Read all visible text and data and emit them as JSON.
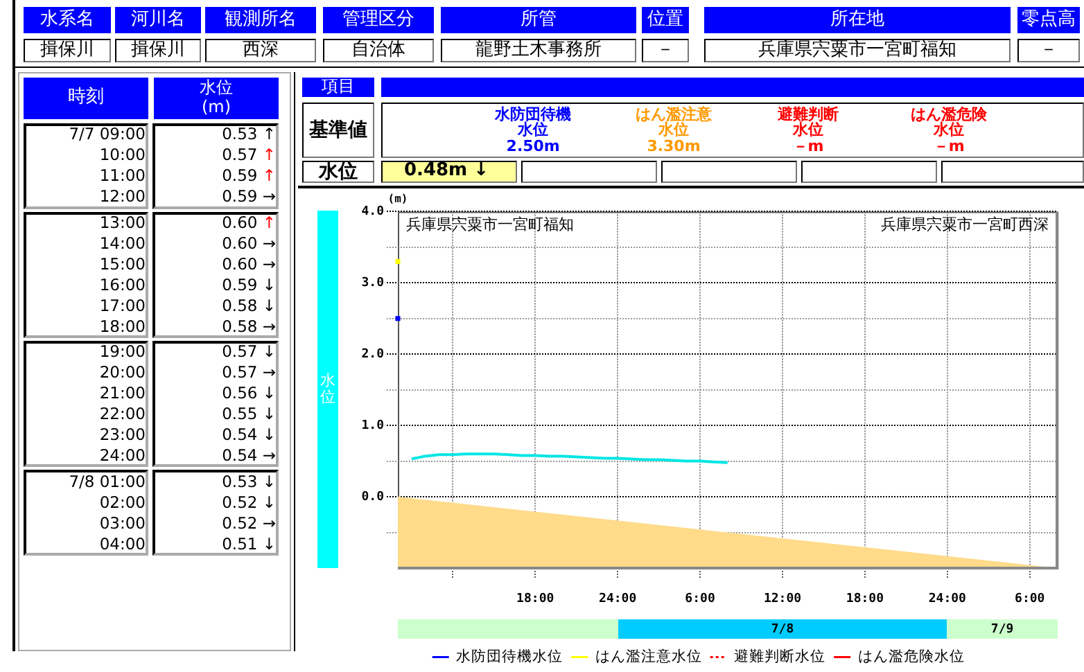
{
  "chart_data": [
    {
      "type": "other",
      "annotations": [
        "水系名",
        "河川名",
        "観測所名",
        "管理区分",
        "所管",
        "位置",
        "所在地",
        "零点高",
        "揖保川",
        "揖保川",
        "西深",
        "自治体",
        "龍野土木事務所",
        "－",
        "兵庫県宍粟市一宮町福知",
        "－"
      ]
    },
    {
      "type": "other",
      "annotations": [
        "項目",
        "基準値",
        "水防団待機",
        "水位",
        "2.50m",
        "はん濫注意",
        "水位",
        "3.30m",
        "避難判断",
        "水位",
        "－m",
        "はん濫危険",
        "水位",
        "－m",
        "水位",
        "0.48m ↓"
      ]
    },
    {
      "type": "line",
      "ylabel": "水位",
      "annotations": [
        "(m)",
        "兵庫県宍粟市一宮町福知",
        "兵庫県宍粟市一宮町西深",
        "時刻",
        "水位",
        "(m)",
        "7/7 09:00",
        "0.53 ↑",
        "10:00",
        "0.57 ↑",
        "11:00",
        "0.59 ↑",
        "12:00",
        "0.59 →",
        "13:00",
        "0.60 ↑",
        "14:00",
        "0.60 →",
        "15:00",
        "0.60 →",
        "16:00",
        "0.59 ↓",
        "17:00",
        "0.58 ↓",
        "18:00",
        "0.58 →",
        "19:00",
        "0.57 ↓",
        "20:00",
        "0.57 →",
        "21:00",
        "0.56 ↓",
        "22:00",
        "0.55 ↓",
        "23:00",
        "0.54 ↓",
        "24:00",
        "0.54 →",
        "7/8 01:00",
        "0.53 ↓",
        "02:00",
        "0.52 ↓",
        "03:00",
        "0.52 →",
        "04:00",
        "0.51 ↓"
      ],
      "x": [
        "--07-07T09:00",
        "--07-07T10:00",
        "--07-07T11:00",
        "--07-07T12:00",
        "--07-07T13:00",
        "--07-07T14:00",
        "--07-07T15:00",
        "--07-07T16:00",
        "--07-07T17:00",
        "--07-07T18:00",
        "--07-07T19:00",
        "--07-07T20:00",
        "--07-07T21:00",
        "--07-07T22:00",
        "--07-07T23:00",
        "--07-08T00:00",
        "--07-08T01:00",
        "--07-08T02:00",
        "--07-08T03:00",
        "--07-08T04:00",
        "--07-08T05:00",
        "--07-08T06:00",
        "--07-08T07:00",
        "--07-08T08:00"
      ],
      "series": [
        {
          "type": "area",
          "color": "#ffdb8a",
          "x": [
            "--07-07T08:00",
            "--07-09T08:00"
          ],
          "values": [
            0,
            -1
          ]
        },
        {
          "color": "#00e5e5",
          "values": [
            0.53,
            0.57,
            0.59,
            0.59,
            0.6,
            0.6,
            0.6,
            0.59,
            0.58,
            0.58,
            0.57,
            0.57,
            0.56,
            0.55,
            0.54,
            0.54,
            0.53,
            0.52,
            0.52,
            0.51,
            0.5,
            0.5,
            0.49,
            0.48
          ]
        },
        {
          "name": "水防団待機水位",
          "color": "#0000ff",
          "x": [
            "--07-07T08:00"
          ],
          "values": [
            2.5
          ],
          "marker": "square"
        },
        {
          "name": "はん濫注意水位",
          "color": "#ffff00",
          "x": [
            "--07-07T08:00"
          ],
          "values": [
            3.3
          ],
          "marker": "square"
        },
        {
          "name": "避難判断水位",
          "color": "#ff0000",
          "line_style": "dotted",
          "values": [
            null,
            null,
            null,
            null,
            null,
            null,
            null,
            null,
            null,
            null,
            null,
            null,
            null,
            null,
            null,
            null,
            null,
            null,
            null,
            null,
            null,
            null,
            null,
            null
          ]
        },
        {
          "name": "はん濫危険水位",
          "color": "#ff0000",
          "values": [
            null,
            null,
            null,
            null,
            null,
            null,
            null,
            null,
            null,
            null,
            null,
            null,
            null,
            null,
            null,
            null,
            null,
            null,
            null,
            null,
            null,
            null,
            null,
            null
          ]
        }
      ],
      "xlim": [
        "--07-07T08:00",
        "--07-09T08:00"
      ],
      "xticks": [
        {
          "value": "--07-07T12:00",
          "label": null
        },
        {
          "value": "--07-07T18:00",
          "label": "18:00"
        },
        {
          "value": "--07-08T00:00",
          "label": "24:00"
        },
        {
          "value": "--07-08T06:00",
          "label": "6:00"
        },
        {
          "value": "--07-08T12:00",
          "label": "12:00"
        },
        {
          "value": "--07-08T18:00",
          "label": "18:00"
        },
        {
          "value": "--07-09T00:00",
          "label": "24:00"
        },
        {
          "value": "--07-09T06:00",
          "label": "6:00"
        }
      ],
      "x2lim": [
        "--07-07T08:00",
        "--07-09T08:00"
      ],
      "x2ticks": [
        {
          "value": "--07-08T12:00",
          "label": "7/8"
        },
        {
          "value": "--07-09T04:00",
          "label": "7/9"
        }
      ],
      "ylim": [
        -1,
        4
      ],
      "yticks": [
        {
          "value": -0.5,
          "label": null
        },
        {
          "value": 0,
          "label": "0.0"
        },
        {
          "value": 0.5,
          "label": null
        },
        {
          "value": 1,
          "label": "1.0"
        },
        {
          "value": 1.5,
          "label": null
        },
        {
          "value": 2,
          "label": "2.0"
        },
        {
          "value": 2.5,
          "label": null
        },
        {
          "value": 3,
          "label": "3.0"
        },
        {
          "value": 3.5,
          "label": null
        },
        {
          "value": 4,
          "label": "4.0"
        }
      ],
      "grid": true,
      "legend": "bottom"
    }
  ]
}
